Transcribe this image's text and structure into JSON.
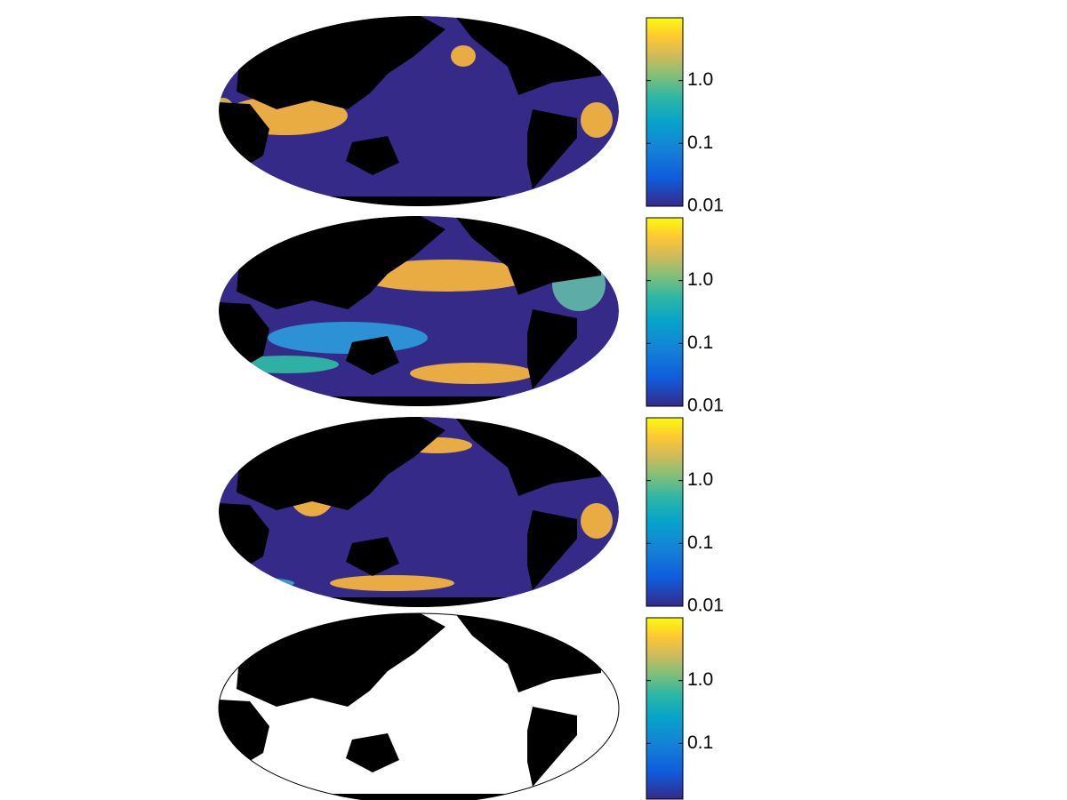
{
  "panels": [
    {
      "colorbar": {
        "scale": "log",
        "lim": [
          0.01,
          10
        ],
        "ticks": [
          0.01,
          0.1,
          {
            "value": 1,
            "label": "1.0"
          }
        ]
      }
    },
    {
      "colorbar": {
        "scale": "log",
        "lim": [
          0.01,
          10
        ],
        "ticks": [
          0.01,
          0.1,
          {
            "value": 1,
            "label": "1.0"
          }
        ]
      }
    },
    {
      "colorbar": {
        "scale": "log",
        "lim": [
          0.01,
          10
        ],
        "ticks": [
          0.01,
          0.1,
          {
            "value": 1,
            "label": "1.0"
          }
        ]
      }
    },
    {
      "colorbar": {
        "scale": "log",
        "lim": [
          0.013,
          10
        ],
        "ticks": [
          0.1,
          {
            "value": 1,
            "label": "1.0"
          }
        ]
      }
    }
  ]
}
